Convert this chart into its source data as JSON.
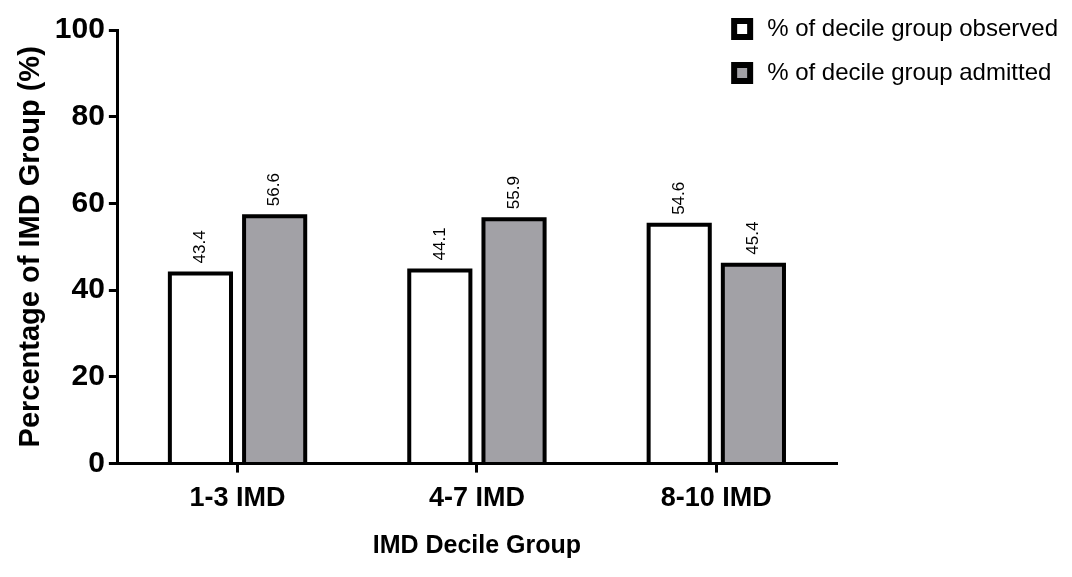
{
  "chart_data": {
    "type": "bar",
    "xlabel": "IMD Decile Group",
    "ylabel": "Percentage of IMD Group (%)",
    "categories": [
      "1-3 IMD",
      "4-7 IMD",
      "8-10 IMD"
    ],
    "series": [
      {
        "name": "% of decile group observed",
        "color": "#ffffff",
        "values": [
          43.4,
          44.1,
          54.6
        ]
      },
      {
        "name": "% of decile group admitted",
        "color": "#a2a1a6",
        "values": [
          56.6,
          55.9,
          45.4
        ]
      }
    ],
    "ylim": [
      0,
      100
    ],
    "yticks": [
      0,
      20,
      40,
      60,
      80,
      100
    ],
    "grid": false,
    "legend": "top right",
    "data_labels": true
  }
}
